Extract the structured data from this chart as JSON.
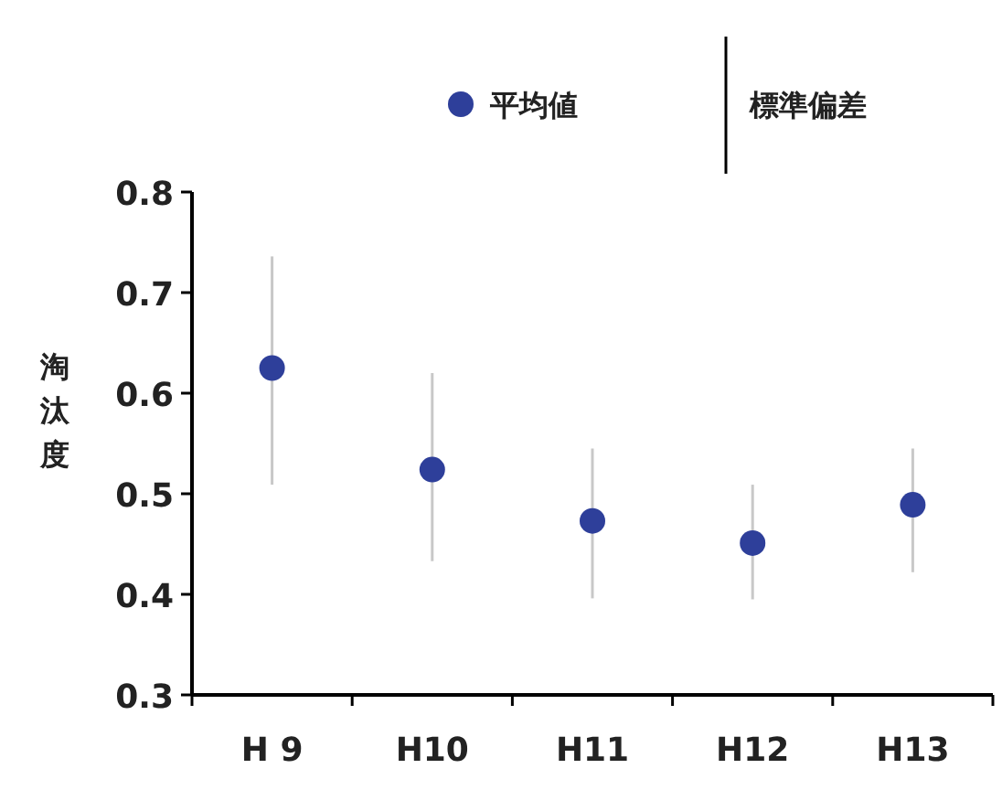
{
  "chart_data": {
    "type": "scatter",
    "ylabel": "淘汰度",
    "categories": [
      "H 9",
      "H10",
      "H11",
      "H12",
      "H13"
    ],
    "series": [
      {
        "name": "平均値",
        "color": "#2e3f9a",
        "values": [
          0.625,
          0.524,
          0.473,
          0.451,
          0.489
        ],
        "errors": [
          [
            0.509,
            0.736
          ],
          [
            0.433,
            0.62
          ],
          [
            0.396,
            0.545
          ],
          [
            0.395,
            0.509
          ],
          [
            0.422,
            0.545
          ]
        ]
      }
    ],
    "annotations": [
      "標準偏差"
    ],
    "ylim": [
      0.3,
      0.8
    ],
    "yticks": [
      0.3,
      0.4,
      0.5,
      0.6,
      0.7,
      0.8
    ],
    "marker": "circle",
    "legend": "top"
  }
}
